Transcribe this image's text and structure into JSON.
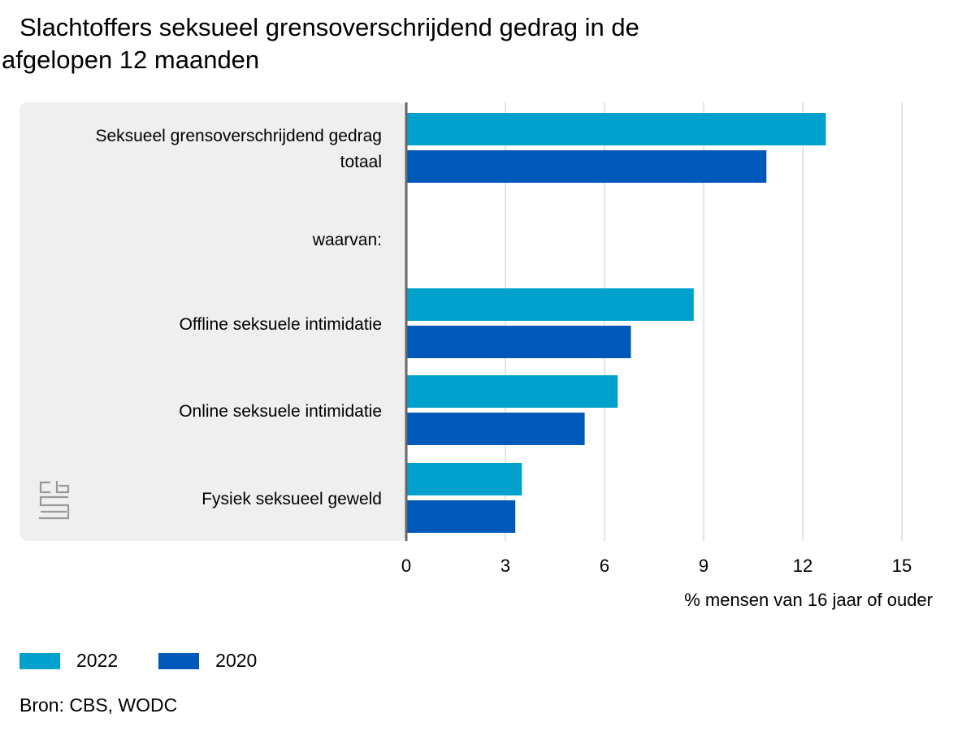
{
  "title_line1": "Slachtoffers seksueel grensoverschrijdend gedrag in de",
  "title_line2": "afgelopen 12 maanden",
  "source": "Bron: CBS, WODC",
  "logo_icon": "cbs-logo-icon",
  "colors": {
    "series_2022": "#00a1cd",
    "series_2020": "#0058b8",
    "panel_bg": "#efefef",
    "grid": "#c8c8c8",
    "axis": "#666666"
  },
  "chart_data": {
    "type": "bar",
    "orientation": "horizontal",
    "categories": [
      [
        "Seksueel grensoverschrijdend gedrag",
        "totaal"
      ],
      [
        "waarvan:"
      ],
      [
        "Offline seksuele intimidatie"
      ],
      [
        "Online seksuele intimidatie"
      ],
      [
        "Fysiek seksueel geweld"
      ]
    ],
    "series": [
      {
        "name": "2022",
        "values": [
          12.7,
          null,
          8.7,
          6.4,
          3.5
        ]
      },
      {
        "name": "2020",
        "values": [
          10.9,
          null,
          6.8,
          5.4,
          3.3
        ]
      }
    ],
    "xlabel": "% mensen van 16 jaar of ouder",
    "xlim": [
      0,
      15
    ],
    "xticks": [
      0,
      3,
      6,
      9,
      12,
      15
    ],
    "grid": true,
    "legend_position": "bottom-left"
  }
}
